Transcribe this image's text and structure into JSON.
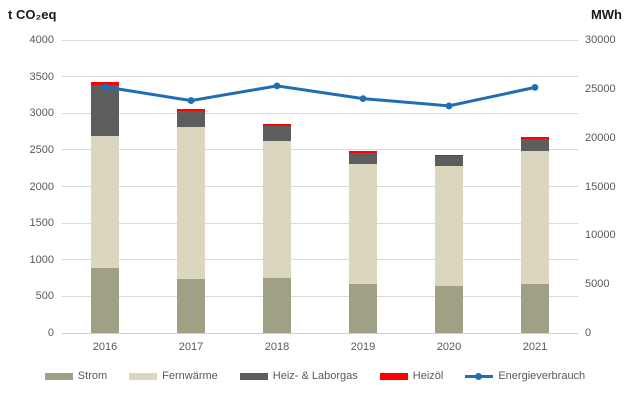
{
  "chart_data": {
    "type": "bar",
    "subtype": "stacked-column-with-line",
    "title": "",
    "categories": [
      "2016",
      "2017",
      "2018",
      "2019",
      "2020",
      "2021"
    ],
    "series": [
      {
        "name": "Strom",
        "kind": "bar",
        "axis": "left",
        "color": "#a0a084",
        "values": [
          890,
          740,
          750,
          670,
          645,
          670
        ]
      },
      {
        "name": "Fernwärme",
        "kind": "bar",
        "axis": "left",
        "color": "#dbd6be",
        "values": [
          1805,
          2070,
          1865,
          1635,
          1640,
          1815
        ]
      },
      {
        "name": "Heiz- & Laborgas",
        "kind": "bar",
        "axis": "left",
        "color": "#5d5d5d",
        "values": [
          690,
          220,
          205,
          150,
          125,
          160
        ]
      },
      {
        "name": "Heizöl",
        "kind": "bar",
        "axis": "left",
        "color": "#ff0000",
        "values": [
          35,
          30,
          30,
          30,
          25,
          30
        ]
      },
      {
        "name": "Energieverbrauch",
        "kind": "line",
        "axis": "right",
        "color": "#1f6eb4",
        "values": [
          25200,
          23800,
          25300,
          24000,
          23250,
          25150
        ]
      }
    ],
    "left_axis": {
      "title": "t CO₂eq",
      "min": 0,
      "max": 4000,
      "step": 500,
      "ticks": [
        0,
        500,
        1000,
        1500,
        2000,
        2500,
        3000,
        3500,
        4000
      ]
    },
    "right_axis": {
      "title": "MWh",
      "min": 0,
      "max": 30000,
      "step": 5000,
      "ticks": [
        0,
        5000,
        10000,
        15000,
        20000,
        25000,
        30000
      ]
    },
    "grid": true,
    "legend_position": "bottom",
    "colors": {
      "grid": "#d9d9d9",
      "tick_text": "#595959",
      "title_text": "#1a1a1a",
      "background": "#ffffff"
    }
  }
}
